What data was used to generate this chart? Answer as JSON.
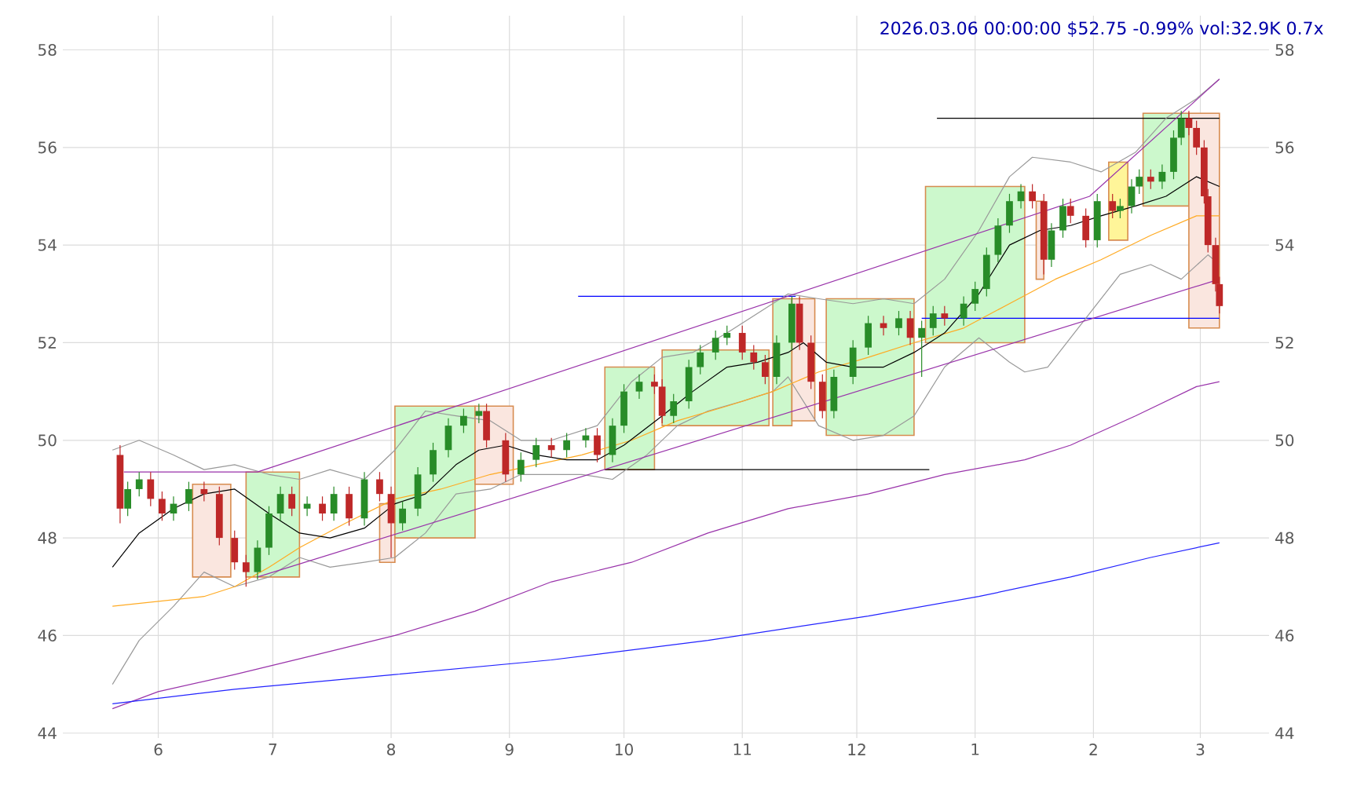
{
  "chart_data": {
    "type": "candlestick",
    "title": "2026.03.06 00:00:00 $52.75 -0.99% vol:32.9K 0.7x",
    "x": [
      "2025-05-22",
      "2025-05-24",
      "2025-05-27",
      "2025-05-30",
      "2025-06-02",
      "2025-06-05",
      "2025-06-09",
      "2025-06-13",
      "2025-06-17",
      "2025-06-21",
      "2025-06-24",
      "2025-06-27",
      "2025-06-30",
      "2025-07-03",
      "2025-07-06",
      "2025-07-10",
      "2025-07-14",
      "2025-07-17",
      "2025-07-21",
      "2025-07-25",
      "2025-07-29",
      "2025-08-01",
      "2025-08-04",
      "2025-08-08",
      "2025-08-12",
      "2025-08-16",
      "2025-08-20",
      "2025-08-24",
      "2025-08-26",
      "2025-08-31",
      "2025-09-04",
      "2025-09-08",
      "2025-09-12",
      "2025-09-16",
      "2025-09-21",
      "2025-09-24",
      "2025-09-28",
      "2025-10-01",
      "2025-10-05",
      "2025-10-09",
      "2025-10-11",
      "2025-10-14",
      "2025-10-18",
      "2025-10-21",
      "2025-10-25",
      "2025-10-28",
      "2025-11-01",
      "2025-11-04",
      "2025-11-07",
      "2025-11-10",
      "2025-11-14",
      "2025-11-16",
      "2025-11-19",
      "2025-11-22",
      "2025-11-25",
      "2025-11-30",
      "2025-12-04",
      "2025-12-08",
      "2025-12-12",
      "2025-12-15",
      "2025-12-18",
      "2025-12-21",
      "2025-12-24",
      "2025-12-29",
      "2026-01-01",
      "2026-01-04",
      "2026-01-07",
      "2026-01-10",
      "2026-01-13",
      "2026-01-16",
      "2026-01-19",
      "2026-01-21",
      "2026-01-24",
      "2026-01-26",
      "2026-01-30",
      "2026-02-02",
      "2026-02-06",
      "2026-02-08",
      "2026-02-11",
      "2026-02-13",
      "2026-02-16",
      "2026-02-19",
      "2026-02-22",
      "2026-02-24",
      "2026-02-26",
      "2026-02-28",
      "2026-03-02",
      "2026-03-03",
      "2026-03-05",
      "2026-03-06"
    ],
    "ohlc": [
      [
        49.7,
        49.9,
        48.3,
        48.6
      ],
      [
        48.6,
        49.15,
        48.45,
        49.0
      ],
      [
        49.0,
        49.35,
        48.85,
        49.2
      ],
      [
        49.2,
        49.35,
        48.65,
        48.8
      ],
      [
        48.8,
        48.95,
        48.35,
        48.5
      ],
      [
        48.5,
        48.85,
        48.35,
        48.7
      ],
      [
        48.7,
        49.15,
        48.55,
        49.0
      ],
      [
        49.0,
        49.15,
        48.75,
        48.9
      ],
      [
        48.9,
        49.05,
        47.85,
        48.0
      ],
      [
        48.0,
        48.15,
        47.35,
        47.5
      ],
      [
        47.5,
        47.65,
        47.0,
        47.3
      ],
      [
        47.3,
        47.95,
        47.15,
        47.8
      ],
      [
        47.8,
        48.65,
        47.65,
        48.5
      ],
      [
        48.5,
        49.05,
        48.35,
        48.9
      ],
      [
        48.9,
        49.05,
        48.45,
        48.6
      ],
      [
        48.6,
        48.85,
        48.45,
        48.7
      ],
      [
        48.7,
        48.85,
        48.35,
        48.5
      ],
      [
        48.5,
        49.05,
        48.35,
        48.9
      ],
      [
        48.9,
        49.05,
        48.25,
        48.4
      ],
      [
        48.4,
        49.35,
        48.25,
        49.2
      ],
      [
        49.2,
        49.35,
        48.75,
        48.9
      ],
      [
        48.9,
        49.05,
        47.6,
        48.3
      ],
      [
        48.3,
        48.75,
        48.15,
        48.6
      ],
      [
        48.6,
        49.45,
        48.45,
        49.3
      ],
      [
        49.3,
        49.95,
        49.15,
        49.8
      ],
      [
        49.8,
        50.45,
        49.65,
        50.3
      ],
      [
        50.3,
        50.65,
        50.15,
        50.5
      ],
      [
        50.5,
        50.75,
        50.35,
        50.6
      ],
      [
        50.6,
        50.75,
        49.85,
        50.0
      ],
      [
        50.0,
        50.15,
        49.15,
        49.3
      ],
      [
        49.3,
        49.75,
        49.15,
        49.6
      ],
      [
        49.6,
        50.05,
        49.45,
        49.9
      ],
      [
        49.9,
        50.05,
        49.65,
        49.8
      ],
      [
        49.8,
        50.15,
        49.65,
        50.0
      ],
      [
        50.0,
        50.25,
        49.85,
        50.1
      ],
      [
        50.1,
        50.25,
        49.55,
        49.7
      ],
      [
        49.7,
        50.45,
        49.55,
        50.3
      ],
      [
        50.3,
        51.15,
        50.15,
        51.0
      ],
      [
        51.0,
        51.35,
        50.85,
        51.2
      ],
      [
        51.2,
        51.35,
        50.95,
        51.1
      ],
      [
        51.1,
        51.25,
        50.35,
        50.5
      ],
      [
        50.5,
        50.95,
        50.35,
        50.8
      ],
      [
        50.8,
        51.65,
        50.65,
        51.5
      ],
      [
        51.5,
        51.95,
        51.35,
        51.8
      ],
      [
        51.8,
        52.25,
        51.65,
        52.1
      ],
      [
        52.1,
        52.35,
        51.95,
        52.2
      ],
      [
        52.2,
        52.35,
        51.65,
        51.8
      ],
      [
        51.8,
        51.95,
        51.45,
        51.6
      ],
      [
        51.6,
        51.75,
        51.15,
        51.3
      ],
      [
        51.3,
        52.15,
        51.15,
        52.0
      ],
      [
        52.0,
        52.95,
        51.85,
        52.8
      ],
      [
        52.8,
        52.95,
        51.85,
        52.0
      ],
      [
        52.0,
        52.15,
        51.05,
        51.2
      ],
      [
        51.2,
        51.35,
        50.45,
        50.6
      ],
      [
        50.6,
        51.45,
        50.45,
        51.3
      ],
      [
        51.3,
        52.05,
        51.15,
        51.9
      ],
      [
        51.9,
        52.55,
        51.75,
        52.4
      ],
      [
        52.4,
        52.55,
        52.15,
        52.3
      ],
      [
        52.3,
        52.65,
        52.15,
        52.5
      ],
      [
        52.5,
        52.65,
        51.95,
        52.1
      ],
      [
        52.1,
        52.45,
        51.3,
        52.3
      ],
      [
        52.3,
        52.75,
        52.15,
        52.6
      ],
      [
        52.6,
        52.75,
        52.35,
        52.5
      ],
      [
        52.5,
        52.95,
        52.35,
        52.8
      ],
      [
        52.8,
        53.25,
        52.65,
        53.1
      ],
      [
        53.1,
        53.95,
        52.95,
        53.8
      ],
      [
        53.8,
        54.55,
        53.65,
        54.4
      ],
      [
        54.4,
        55.05,
        54.25,
        54.9
      ],
      [
        54.9,
        55.25,
        54.75,
        55.1
      ],
      [
        55.1,
        55.25,
        54.75,
        54.9
      ],
      [
        54.9,
        55.05,
        53.4,
        53.7
      ],
      [
        53.7,
        54.45,
        53.55,
        54.3
      ],
      [
        54.3,
        54.95,
        54.15,
        54.8
      ],
      [
        54.8,
        54.95,
        54.45,
        54.6
      ],
      [
        54.6,
        54.75,
        53.95,
        54.1
      ],
      [
        54.1,
        55.05,
        53.95,
        54.9
      ],
      [
        54.9,
        55.05,
        54.55,
        54.7
      ],
      [
        54.7,
        54.95,
        54.55,
        54.8
      ],
      [
        54.8,
        55.35,
        54.65,
        55.2
      ],
      [
        55.2,
        55.55,
        55.05,
        55.4
      ],
      [
        55.4,
        55.55,
        55.15,
        55.3
      ],
      [
        55.3,
        55.65,
        55.15,
        55.5
      ],
      [
        55.5,
        56.35,
        55.35,
        56.2
      ],
      [
        56.2,
        56.75,
        56.05,
        56.6
      ],
      [
        56.6,
        56.75,
        56.25,
        56.4
      ],
      [
        56.4,
        56.55,
        55.85,
        56.0
      ],
      [
        56.0,
        56.15,
        54.85,
        55.0
      ],
      [
        55.0,
        55.15,
        53.85,
        54.0
      ],
      [
        54.0,
        54.15,
        53.05,
        53.2
      ],
      [
        53.2,
        53.35,
        52.6,
        52.75
      ]
    ],
    "series": [
      {
        "type": "area",
        "color": "#fae6df",
        "x": [
          "2025-06-10",
          "2025-06-10",
          "2025-06-20",
          "2025-06-20",
          "2025-06-10"
        ],
        "values": [
          47.2,
          49.1,
          49.1,
          47.2,
          47.2
        ]
      },
      {
        "type": "area",
        "color": "#ccf8cc",
        "x": [
          "2025-06-24",
          "2025-06-24",
          "2025-07-08",
          "2025-07-08",
          "2025-06-24"
        ],
        "values": [
          47.2,
          49.35,
          49.35,
          47.2,
          47.2
        ]
      },
      {
        "type": "area",
        "color": "#fae6df",
        "x": [
          "2025-07-29",
          "2025-07-29",
          "2025-08-02",
          "2025-08-02",
          "2025-07-29"
        ],
        "values": [
          47.5,
          48.7,
          48.7,
          47.5,
          47.5
        ]
      },
      {
        "type": "area",
        "color": "#ccf8cc",
        "x": [
          "2025-08-02",
          "2025-08-02",
          "2025-08-23",
          "2025-08-23",
          "2025-08-02"
        ],
        "values": [
          48.0,
          50.7,
          50.7,
          48.0,
          48.0
        ]
      },
      {
        "type": "area",
        "color": "#fae6df",
        "x": [
          "2025-08-23",
          "2025-08-23",
          "2025-09-02",
          "2025-09-02",
          "2025-08-23"
        ],
        "values": [
          49.1,
          50.7,
          50.7,
          49.1,
          49.1
        ]
      },
      {
        "type": "area",
        "color": "#ccf8cc",
        "x": [
          "2025-09-26",
          "2025-09-26",
          "2025-10-09",
          "2025-10-09",
          "2025-09-26"
        ],
        "values": [
          49.4,
          51.5,
          51.5,
          49.4,
          49.4
        ]
      },
      {
        "type": "area",
        "color": "#ccf8cc",
        "x": [
          "2025-10-11",
          "2025-10-11",
          "2025-11-08",
          "2025-11-08",
          "2025-10-11"
        ],
        "values": [
          50.3,
          51.85,
          51.85,
          50.3,
          50.3
        ]
      },
      {
        "type": "area",
        "color": "#ccf8cc",
        "x": [
          "2025-11-09",
          "2025-11-09",
          "2025-11-14",
          "2025-11-14",
          "2025-11-09"
        ],
        "values": [
          50.3,
          52.9,
          52.9,
          50.3,
          50.3
        ]
      },
      {
        "type": "area",
        "color": "#fae6df",
        "x": [
          "2025-11-14",
          "2025-11-14",
          "2025-11-20",
          "2025-11-20",
          "2025-11-14"
        ],
        "values": [
          50.4,
          52.9,
          52.9,
          50.4,
          50.4
        ]
      },
      {
        "type": "area",
        "color": "#ccf8cc",
        "x": [
          "2025-11-23",
          "2025-11-23",
          "2025-12-16",
          "2025-12-16",
          "2025-11-23"
        ],
        "values": [
          50.1,
          52.9,
          52.9,
          50.1,
          50.1
        ]
      },
      {
        "type": "area",
        "color": "#ccf8cc",
        "x": [
          "2025-12-19",
          "2025-12-19",
          "2026-01-14",
          "2026-01-14",
          "2025-12-19"
        ],
        "values": [
          52.0,
          55.2,
          55.2,
          52.0,
          52.0
        ]
      },
      {
        "type": "area",
        "color": "#fae6df",
        "x": [
          "2026-01-17",
          "2026-01-17",
          "2026-01-19",
          "2026-01-19",
          "2026-01-17"
        ],
        "values": [
          53.3,
          54.9,
          54.9,
          53.3,
          53.3
        ]
      },
      {
        "type": "area",
        "color": "#fff599",
        "x": [
          "2026-02-05",
          "2026-02-05",
          "2026-02-10",
          "2026-02-10",
          "2026-02-05"
        ],
        "values": [
          54.1,
          55.7,
          55.7,
          54.1,
          54.1
        ]
      },
      {
        "type": "area",
        "color": "#ccf8cc",
        "x": [
          "2026-02-14",
          "2026-02-14",
          "2026-02-26",
          "2026-02-26",
          "2026-02-14"
        ],
        "values": [
          54.8,
          56.7,
          56.7,
          54.8,
          54.8
        ]
      },
      {
        "type": "area",
        "color": "#fae6df",
        "x": [
          "2026-02-26",
          "2026-02-26",
          "2026-03-06",
          "2026-03-06",
          "2026-02-26"
        ],
        "values": [
          52.3,
          56.7,
          56.7,
          52.3,
          52.3
        ]
      },
      {
        "type": "line",
        "color": "#000000",
        "x": [
          "2025-12-22",
          "2026-03-06"
        ],
        "values": [
          56.6,
          56.6
        ]
      },
      {
        "type": "line",
        "color": "#0000ff",
        "x": [
          "2025-09-19",
          "2025-11-15"
        ],
        "values": [
          52.95,
          52.95
        ]
      },
      {
        "type": "line",
        "color": "#0000ff",
        "x": [
          "2025-12-18",
          "2026-03-06"
        ],
        "values": [
          52.5,
          52.5
        ]
      },
      {
        "type": "line",
        "color": "#000000",
        "x": [
          "2025-09-26",
          "2025-12-20"
        ],
        "values": [
          49.4,
          49.4
        ]
      },
      {
        "type": "line",
        "color": "#999999",
        "x": [
          "2025-05-20",
          "2025-05-27",
          "2025-06-05",
          "2025-06-13",
          "2025-06-21",
          "2025-06-30",
          "2025-07-08",
          "2025-07-16",
          "2025-07-25",
          "2025-08-02",
          "2025-08-10",
          "2025-08-18",
          "2025-08-27",
          "2025-09-04",
          "2025-09-12",
          "2025-09-24",
          "2025-10-03",
          "2025-10-11",
          "2025-10-19",
          "2025-10-28",
          "2025-11-05",
          "2025-11-13",
          "2025-11-21",
          "2025-11-30",
          "2025-12-08",
          "2025-12-16",
          "2025-12-24",
          "2026-01-02",
          "2026-01-10",
          "2026-01-16",
          "2026-01-26",
          "2026-02-03",
          "2026-02-12",
          "2026-02-20",
          "2026-02-28",
          "2026-03-06"
        ],
        "values": [
          49.8,
          50.0,
          49.7,
          49.4,
          49.5,
          49.3,
          49.2,
          49.4,
          49.2,
          49.8,
          50.6,
          50.5,
          50.4,
          50.0,
          50.0,
          50.3,
          51.2,
          51.7,
          51.8,
          52.2,
          52.6,
          53.0,
          52.9,
          52.8,
          52.9,
          52.8,
          53.3,
          54.3,
          55.4,
          55.8,
          55.7,
          55.5,
          55.9,
          56.6,
          57.0,
          57.4
        ]
      },
      {
        "type": "line",
        "color": "#999999",
        "x": [
          "2025-05-20",
          "2025-05-27",
          "2025-06-05",
          "2025-06-13",
          "2025-06-21",
          "2025-06-30",
          "2025-07-08",
          "2025-07-16",
          "2025-07-25",
          "2025-08-02",
          "2025-08-10",
          "2025-08-18",
          "2025-08-27",
          "2025-09-04",
          "2025-09-12",
          "2025-09-20",
          "2025-09-28",
          "2025-10-07",
          "2025-10-15",
          "2025-10-23",
          "2025-11-01",
          "2025-11-09",
          "2025-11-13",
          "2025-11-21",
          "2025-11-30",
          "2025-12-08",
          "2025-12-16",
          "2025-12-24",
          "2026-01-02",
          "2026-01-10",
          "2026-01-14",
          "2026-01-20",
          "2026-01-30",
          "2026-02-08",
          "2026-02-16",
          "2026-02-24",
          "2026-03-03",
          "2026-03-06"
        ],
        "values": [
          45.0,
          45.9,
          46.6,
          47.3,
          47.0,
          47.2,
          47.6,
          47.4,
          47.5,
          47.6,
          48.1,
          48.9,
          49.0,
          49.3,
          49.3,
          49.3,
          49.2,
          49.7,
          50.3,
          50.6,
          50.8,
          51.0,
          51.3,
          50.3,
          50.0,
          50.1,
          50.5,
          51.5,
          52.1,
          51.6,
          51.4,
          51.5,
          52.5,
          53.4,
          53.6,
          53.3,
          53.8,
          53.6
        ]
      },
      {
        "type": "line",
        "color": "#ffaa22",
        "x": [
          "2025-05-20",
          "2025-06-01",
          "2025-06-13",
          "2025-06-21",
          "2025-06-30",
          "2025-07-08",
          "2025-07-20",
          "2025-08-02",
          "2025-08-14",
          "2025-08-27",
          "2025-09-08",
          "2025-09-20",
          "2025-10-03",
          "2025-10-15",
          "2025-10-28",
          "2025-11-09",
          "2025-11-21",
          "2025-12-04",
          "2025-12-16",
          "2025-12-29",
          "2026-01-10",
          "2026-01-22",
          "2026-02-03",
          "2026-02-16",
          "2026-02-28",
          "2026-03-06"
        ],
        "values": [
          46.6,
          46.7,
          46.8,
          47.0,
          47.4,
          47.8,
          48.3,
          48.8,
          49.0,
          49.3,
          49.5,
          49.7,
          50.0,
          50.4,
          50.7,
          51.0,
          51.4,
          51.7,
          52.0,
          52.3,
          52.8,
          53.3,
          53.7,
          54.2,
          54.6,
          54.6
        ]
      },
      {
        "type": "line",
        "color": "#000000",
        "x": [
          "2025-05-20",
          "2025-05-27",
          "2025-06-05",
          "2025-06-13",
          "2025-06-21",
          "2025-06-30",
          "2025-07-08",
          "2025-07-16",
          "2025-07-25",
          "2025-08-02",
          "2025-08-10",
          "2025-08-18",
          "2025-08-24",
          "2025-08-31",
          "2025-09-08",
          "2025-09-16",
          "2025-09-24",
          "2025-10-01",
          "2025-10-11",
          "2025-10-19",
          "2025-10-28",
          "2025-11-05",
          "2025-11-13",
          "2025-11-17",
          "2025-11-23",
          "2025-11-30",
          "2025-12-08",
          "2025-12-16",
          "2025-12-24",
          "2026-01-02",
          "2026-01-10",
          "2026-01-18",
          "2026-01-26",
          "2026-02-03",
          "2026-02-12",
          "2026-02-20",
          "2026-02-28",
          "2026-03-06"
        ],
        "values": [
          47.4,
          48.1,
          48.6,
          48.9,
          49.0,
          48.5,
          48.1,
          48.0,
          48.2,
          48.7,
          48.9,
          49.5,
          49.8,
          49.9,
          49.7,
          49.6,
          49.6,
          49.9,
          50.5,
          51.0,
          51.5,
          51.6,
          51.8,
          52.0,
          51.6,
          51.5,
          51.5,
          51.8,
          52.2,
          53.0,
          54.0,
          54.3,
          54.4,
          54.6,
          54.8,
          55.0,
          55.4,
          55.2
        ]
      },
      {
        "type": "line",
        "color": "#9933aa",
        "x": [
          "2025-05-23",
          "2025-06-27",
          "2026-01-31",
          "2026-03-06"
        ],
        "values": [
          49.35,
          49.35,
          55.0,
          57.4
        ]
      },
      {
        "type": "line",
        "color": "#9933aa",
        "x": [
          "2025-06-27",
          "2026-03-06"
        ],
        "values": [
          47.2,
          53.3
        ]
      },
      {
        "type": "line",
        "color": "#9933aa",
        "x": [
          "2025-05-20",
          "2025-06-01",
          "2025-06-21",
          "2025-07-12",
          "2025-08-02",
          "2025-08-23",
          "2025-09-12",
          "2025-10-03",
          "2025-10-23",
          "2025-11-13",
          "2025-12-04",
          "2025-12-24",
          "2026-01-14",
          "2026-01-26",
          "2026-02-12",
          "2026-02-28",
          "2026-03-06"
        ],
        "values": [
          44.5,
          44.85,
          45.2,
          45.6,
          46.0,
          46.5,
          47.1,
          47.5,
          48.1,
          48.6,
          48.9,
          49.3,
          49.6,
          49.9,
          50.5,
          51.1,
          51.2
        ]
      },
      {
        "type": "line",
        "color": "#2222ff",
        "x": [
          "2025-05-20",
          "2025-06-21",
          "2025-08-02",
          "2025-09-12",
          "2025-10-23",
          "2025-12-04",
          "2026-01-02",
          "2026-01-26",
          "2026-02-16",
          "2026-03-06"
        ],
        "values": [
          44.6,
          44.9,
          45.2,
          45.5,
          45.9,
          46.4,
          46.8,
          47.2,
          47.6,
          47.9
        ]
      }
    ],
    "xlim": [
      "2025-05-07",
      "2026-03-19"
    ],
    "xticks": [
      {
        "value": "2025-06-01",
        "label": "6"
      },
      {
        "value": "2025-07-01",
        "label": "7"
      },
      {
        "value": "2025-08-01",
        "label": "8"
      },
      {
        "value": "2025-09-01",
        "label": "9"
      },
      {
        "value": "2025-10-01",
        "label": "10"
      },
      {
        "value": "2025-11-01",
        "label": "11"
      },
      {
        "value": "2025-12-01",
        "label": "12"
      },
      {
        "value": "2026-01-01",
        "label": "1"
      },
      {
        "value": "2026-02-01",
        "label": "2"
      },
      {
        "value": "2026-03-01",
        "label": "3"
      }
    ],
    "ylim": [
      43.9,
      58.7
    ],
    "yticks": [
      44,
      46,
      48,
      50,
      52,
      54,
      56,
      58
    ],
    "y2lim": [
      43.9,
      58.7
    ],
    "y2ticks": [
      44,
      46,
      48,
      50,
      52,
      54,
      56,
      58
    ],
    "grid": true
  }
}
